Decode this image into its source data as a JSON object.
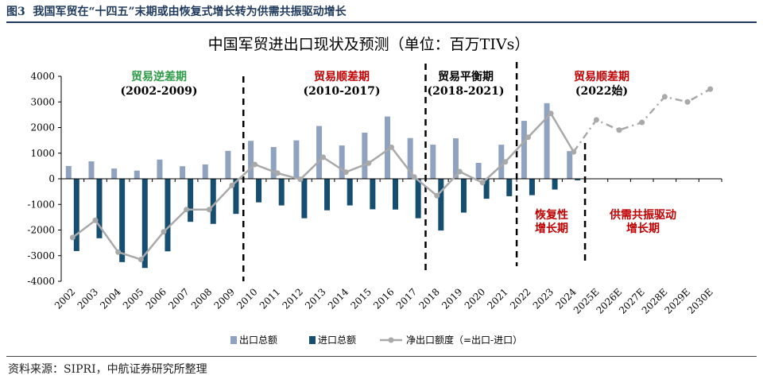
{
  "figure": {
    "label": "图3",
    "caption": "我国军贸在“十四五”末期或由恢复式增长转为供需共振驱动增长",
    "source": "资料来源：SIPRI，中航证券研究所整理"
  },
  "chart_data": {
    "type": "bar",
    "title": "中国军贸进出口现状及预测（单位：百万TIVs）",
    "categories": [
      "2002",
      "2003",
      "2004",
      "2005",
      "2006",
      "2007",
      "2008",
      "2009",
      "2010",
      "2011",
      "2012",
      "2013",
      "2014",
      "2015",
      "2016",
      "2017",
      "2018",
      "2019",
      "2020",
      "2021",
      "2022",
      "2023",
      "2024",
      "2025E",
      "2026E",
      "2027E",
      "2028E",
      "2029E",
      "2030E"
    ],
    "yticks": [
      "4000",
      "3000",
      "2000",
      "1000",
      "0",
      "-1000",
      "-2000",
      "-3000",
      "-4000"
    ],
    "ylim": [
      -4000,
      4000
    ],
    "series": [
      {
        "name": "出口总额",
        "type": "bar",
        "color": "#8fa2bf",
        "values": [
          500,
          680,
          400,
          320,
          750,
          490,
          560,
          1090,
          1480,
          1240,
          1500,
          2060,
          1300,
          1800,
          2430,
          1590,
          1330,
          1580,
          620,
          1330,
          2260,
          2950,
          1080,
          null,
          null,
          null,
          null,
          null,
          null
        ]
      },
      {
        "name": "进口总额",
        "type": "bar",
        "color": "#164e72",
        "values": [
          -2820,
          -2320,
          -3250,
          -3480,
          -2830,
          -1680,
          -1760,
          -1370,
          -920,
          -1040,
          -1540,
          -1230,
          -1040,
          -1190,
          -1200,
          -1540,
          -2020,
          -1320,
          -780,
          -680,
          -640,
          -420,
          -60,
          null,
          null,
          null,
          null,
          null,
          null
        ]
      },
      {
        "name": "净出口额度（=出口-进口）",
        "type": "line",
        "color": "#a9a9a9",
        "values": [
          -2290,
          -1620,
          -2860,
          -3150,
          -2070,
          -1200,
          -1200,
          -260,
          560,
          220,
          -20,
          840,
          260,
          610,
          1230,
          70,
          -660,
          280,
          -150,
          660,
          1620,
          2550,
          1050,
          2300,
          1900,
          2200,
          3200,
          3000,
          3500
        ],
        "forecast_from": "2025E"
      }
    ],
    "annotations": [
      {
        "text": "贸易逆差期",
        "color": "#2e9b47"
      },
      {
        "text": "(2002-2009)",
        "color": "#000000"
      },
      {
        "text": "贸易顺差期",
        "color": "#c00000"
      },
      {
        "text": "(2010-2017)",
        "color": "#000000"
      },
      {
        "text": "贸易平衡期",
        "color": "#000000"
      },
      {
        "text": "(2018-2021)",
        "color": "#000000"
      },
      {
        "text": "贸易顺差期",
        "color": "#c00000"
      },
      {
        "text": "(2022始)",
        "color": "#000000"
      },
      {
        "text": "恢复性",
        "color": "#c00000"
      },
      {
        "text": "增长期",
        "color": "#c00000"
      },
      {
        "text": "供需共振驱动",
        "color": "#c00000"
      },
      {
        "text": "增长期",
        "color": "#c00000"
      }
    ],
    "legend_position": "bottom",
    "grid": false
  }
}
